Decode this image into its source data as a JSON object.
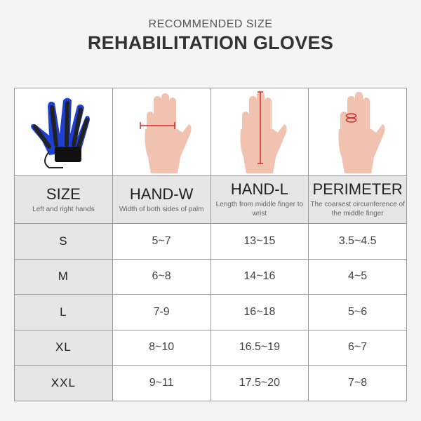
{
  "subtitle": "RECOMMENDED SIZE",
  "title": "REHABILITATION GLOVES",
  "images": [
    {
      "icon": "robotic-glove-icon"
    },
    {
      "icon": "hand-width-measure-icon"
    },
    {
      "icon": "hand-length-measure-icon"
    },
    {
      "icon": "finger-circumference-measure-icon"
    }
  ],
  "columns": [
    {
      "label": "SIZE",
      "desc": "Left and right hands"
    },
    {
      "label": "HAND-W",
      "desc": "Width of both sides of palm"
    },
    {
      "label": "HAND-L",
      "desc": "Length from middle finger to wrist"
    },
    {
      "label": "PERIMETER",
      "desc": "The coarsest circumference of the middle finger"
    }
  ],
  "rows": [
    [
      "S",
      "5~7",
      "13~15",
      "3.5~4.5"
    ],
    [
      "M",
      "6~8",
      "14~16",
      "4~5"
    ],
    [
      "L",
      "7-9",
      "16~18",
      "5~6"
    ],
    [
      "XL",
      "8~10",
      "16.5~19",
      "6~7"
    ],
    [
      "XXL",
      "9~11",
      "17.5~20",
      "7~8"
    ]
  ],
  "colors": {
    "glove": "#1f3fd0",
    "measure": "#d42a2a",
    "header_bg": "#e6e6e6",
    "skin": "#f2c2b0"
  }
}
